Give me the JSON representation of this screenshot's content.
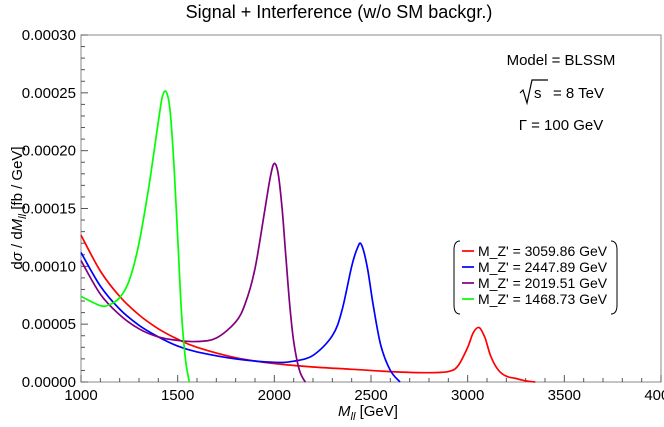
{
  "chart_data": {
    "type": "line",
    "title": "Signal + Interference (w/o SM backgr.)",
    "xlabel": "M_ll  [GeV]",
    "ylabel": "dσ / dM_ll  [fb / GeV]",
    "xlim": [
      1000,
      4000
    ],
    "ylim": [
      0,
      0.0003
    ],
    "x_ticks": [
      "1000",
      "1500",
      "2000",
      "2500",
      "3000",
      "3500",
      "4000"
    ],
    "y_ticks": [
      "0.00000",
      "0.00005",
      "0.00010",
      "0.00015",
      "0.00020",
      "0.00025",
      "0.00030"
    ],
    "annotations": {
      "model": "Model = BLSSM",
      "sqrt_s_symbol": "s",
      "sqrt_s_value": "= 8 TeV",
      "width": "Γ = 100 GeV"
    },
    "legend_position": "right",
    "series": [
      {
        "name": "M_Z' = 3059.86 GeV",
        "color": "#ff0000",
        "x": [
          1000,
          1100,
          1200,
          1300,
          1400,
          1500,
          1600,
          1800,
          2000,
          2200,
          2400,
          2600,
          2800,
          2900,
          2950,
          3000,
          3030,
          3060,
          3090,
          3120,
          3160,
          3200,
          3250,
          3300,
          3350
        ],
        "y": [
          0.000127,
          9.6e-05,
          7.4e-05,
          5.8e-05,
          4.6e-05,
          3.7e-05,
          3e-05,
          2.1e-05,
          1.6e-05,
          1.3e-05,
          1.1e-05,
          9e-06,
          8e-06,
          9e-06,
          1.4e-05,
          3e-05,
          4.3e-05,
          4.7e-05,
          3.8e-05,
          2.2e-05,
          1e-05,
          5e-06,
          3e-06,
          1e-06,
          0.0
        ]
      },
      {
        "name": "M_Z' = 2447.89 GeV",
        "color": "#0000ff",
        "x": [
          1000,
          1100,
          1200,
          1300,
          1400,
          1500,
          1600,
          1800,
          2000,
          2100,
          2200,
          2300,
          2350,
          2400,
          2430,
          2450,
          2480,
          2510,
          2550,
          2600,
          2650
        ],
        "y": [
          0.000112,
          8.3e-05,
          6.3e-05,
          4.9e-05,
          3.9e-05,
          3.1e-05,
          2.6e-05,
          2e-05,
          1.7e-05,
          1.8e-05,
          2.3e-05,
          4e-05,
          6.2e-05,
          0.0001,
          0.000116,
          0.000119,
          0.0001,
          6.8e-05,
          3.2e-05,
          1e-05,
          0.0
        ]
      },
      {
        "name": "M_Z' = 2019.51 GeV",
        "color": "#800080",
        "x": [
          1000,
          1100,
          1200,
          1300,
          1400,
          1500,
          1600,
          1700,
          1800,
          1850,
          1900,
          1950,
          1980,
          2000,
          2020,
          2040,
          2060,
          2080,
          2100,
          2130,
          2160
        ],
        "y": [
          0.000105,
          7.6e-05,
          5.8e-05,
          4.6e-05,
          3.9e-05,
          3.6e-05,
          3.5e-05,
          3.8e-05,
          5.2e-05,
          6.8e-05,
          9.8e-05,
          0.000148,
          0.000178,
          0.000189,
          0.00018,
          0.00015,
          0.000108,
          6.6e-05,
          3.5e-05,
          1e-05,
          0.0
        ]
      },
      {
        "name": "M_Z' = 1468.73 GeV",
        "color": "#00ff00",
        "x": [
          1000,
          1100,
          1150,
          1200,
          1250,
          1300,
          1350,
          1400,
          1420,
          1440,
          1460,
          1480,
          1500,
          1520,
          1540,
          1560
        ],
        "y": [
          7.4e-05,
          6.6e-05,
          6.7e-05,
          7.3e-05,
          8.8e-05,
          0.00012,
          0.000168,
          0.000225,
          0.000246,
          0.000251,
          0.000236,
          0.00019,
          0.000125,
          6e-05,
          2e-05,
          0.0
        ]
      }
    ]
  }
}
